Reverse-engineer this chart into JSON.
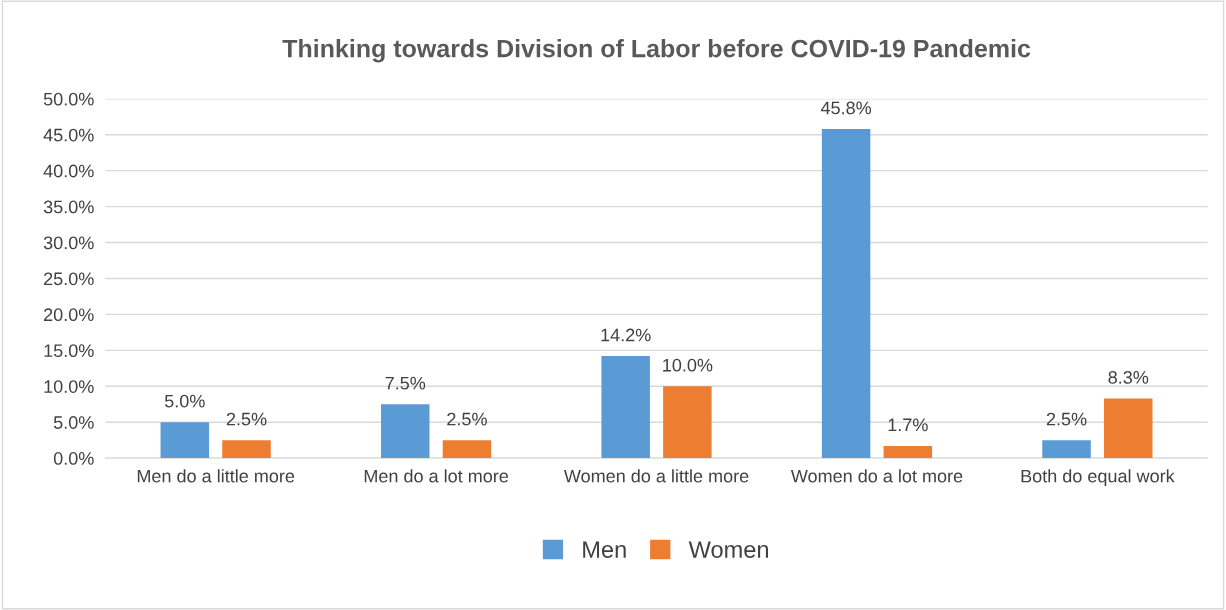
{
  "chart_data": {
    "type": "bar",
    "title": "Thinking towards Division of Labor before COVID-19 Pandemic",
    "categories": [
      "Men do a little more",
      "Men do a lot more",
      "Women do a little more",
      "Women do a lot more",
      "Both do equal work"
    ],
    "series": [
      {
        "name": "Men",
        "color": "#5b9bd5",
        "values": [
          5.0,
          7.5,
          14.2,
          45.8,
          2.5
        ],
        "value_labels": [
          "5.0%",
          "7.5%",
          "14.2%",
          "45.8%",
          "2.5%"
        ]
      },
      {
        "name": "Women",
        "color": "#ed7d31",
        "values": [
          2.5,
          2.5,
          10.0,
          1.7,
          8.3
        ],
        "value_labels": [
          "2.5%",
          "2.5%",
          "10.0%",
          "1.7%",
          "8.3%"
        ]
      }
    ],
    "ylim": [
      0,
      50
    ],
    "yticks": [
      {
        "value": 0,
        "label": "0.0%"
      },
      {
        "value": 5,
        "label": "5.0%"
      },
      {
        "value": 10,
        "label": "10.0%"
      },
      {
        "value": 15,
        "label": "15.0%"
      },
      {
        "value": 20,
        "label": "20.0%"
      },
      {
        "value": 25,
        "label": "25.0%"
      },
      {
        "value": 30,
        "label": "30.0%"
      },
      {
        "value": 35,
        "label": "35.0%"
      },
      {
        "value": 40,
        "label": "40.0%"
      },
      {
        "value": 45,
        "label": "45.0%"
      },
      {
        "value": 50,
        "label": "50.0%"
      }
    ],
    "grid": "y",
    "legend": "bottom"
  }
}
